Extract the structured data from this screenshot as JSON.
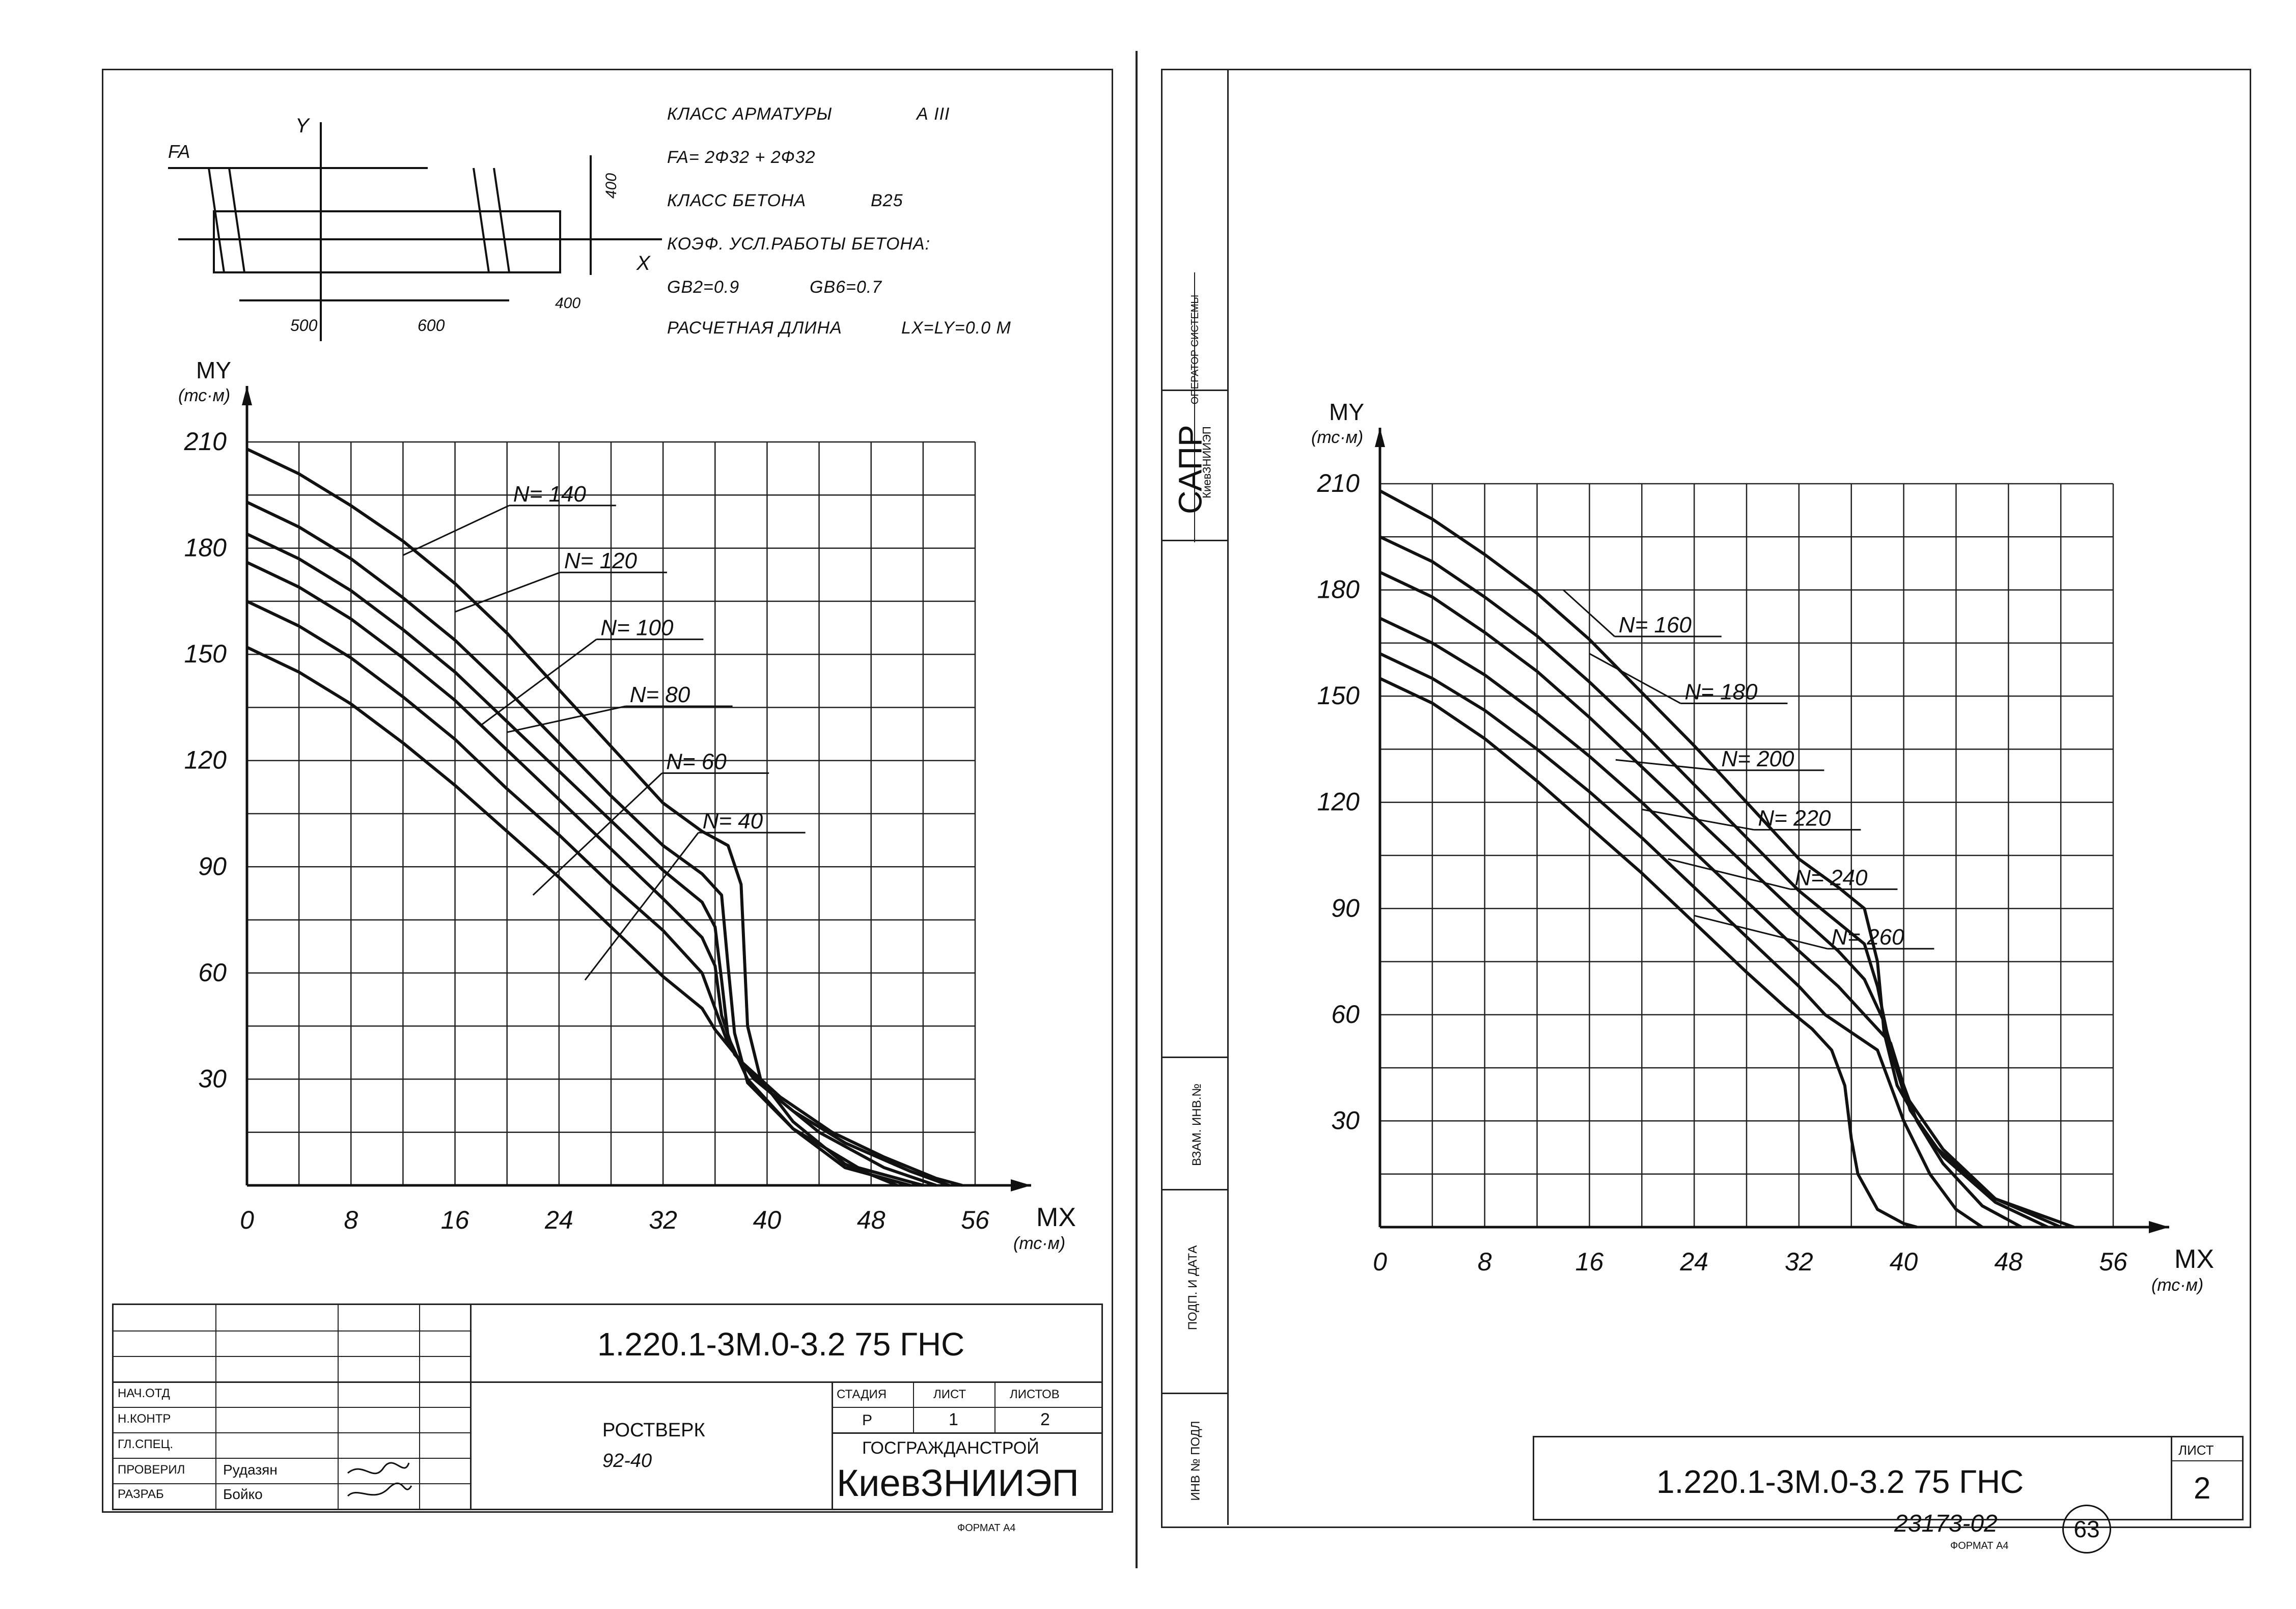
{
  "left_sheet": {
    "info": {
      "rebar_class_label": "КЛАСС АРМАТУРЫ",
      "rebar_class_value": "А III",
      "fa_line": "FA= 2Ф32 + 2Ф32",
      "concrete_class_label": "КЛАСС БЕТОНА",
      "concrete_class_value": "B25",
      "coef_title": "КОЭФ. УСЛ.РАБОТЫ БЕТОНА:",
      "gb2": "GB2=0.9",
      "gb6": "GB6=0.7",
      "length_label": "РАСЧЕТНАЯ ДЛИНА",
      "length_value": "LX=LY=0.0 М"
    },
    "section": {
      "fa": "FA",
      "y": "Y",
      "x": "X",
      "dim_400_top": "400",
      "dim_400_bottom": "400",
      "dim_500": "500",
      "dim_600": "600"
    },
    "title_block": {
      "doc_code": "1.220.1-3М.0-3.2 75 ГНС",
      "roles": [
        "НАЧ.ОТД",
        "Н.КОНТР",
        "ГЛ.СПЕЦ.",
        "ПРОВЕРИЛ",
        "РАЗРАБ"
      ],
      "names": [
        "",
        "",
        "",
        "Рудазян",
        "Бойко"
      ],
      "item_name": "РОСТВЕРК",
      "item_mark": "92-40",
      "stage_label": "СТАДИЯ",
      "sheet_label": "ЛИСТ",
      "sheets_label": "ЛИСТОВ",
      "stage_value": "Р",
      "sheet_value": "1",
      "sheets_value": "2",
      "org_top": "ГОСГРАЖДАНСТРОЙ",
      "org_bottom": "КиевЗНИИЭП",
      "format": "ФОРМАТ А4"
    }
  },
  "right_sheet": {
    "side_strip": {
      "operator": "ОПЕРАТОР СИСТЕМЫ",
      "sapr": "САПР",
      "sapr_sub": "КиевЗНИИЭП",
      "vzam": "ВЗАМ. ИНВ.№",
      "podp": "ПОДП. И ДАТА",
      "inv": "ИНВ № ПОДЛ"
    },
    "title_block": {
      "doc_code": "1.220.1-3М.0-3.2 75 ГНС",
      "sheet_label": "ЛИСТ",
      "sheet_value": "2",
      "stamp": "23173-02",
      "circled": "63",
      "format": "ФОРМАТ А4"
    }
  },
  "chart_data": [
    {
      "type": "line",
      "title": "",
      "xlabel": "MX",
      "xunit": "(тс·м)",
      "ylabel": "MY",
      "yunit": "(тс·м)",
      "xlim": [
        0,
        56
      ],
      "ylim": [
        0,
        210
      ],
      "xticks": [
        "0",
        "8",
        "16",
        "24",
        "32",
        "40",
        "48",
        "56"
      ],
      "yticks": [
        "30",
        "60",
        "90",
        "120",
        "150",
        "180",
        "210"
      ],
      "grid": true,
      "series": [
        {
          "name": "N= 140",
          "x": [
            0,
            4,
            8,
            12,
            16,
            20,
            24,
            28,
            32,
            35,
            37,
            38,
            38.5,
            39.5,
            42,
            46,
            50
          ],
          "y": [
            208,
            201,
            192,
            182,
            170,
            156,
            140,
            124,
            108,
            100,
            96,
            85,
            45,
            30,
            18,
            6,
            0
          ]
        },
        {
          "name": "N= 120",
          "x": [
            0,
            4,
            8,
            12,
            16,
            20,
            24,
            28,
            32,
            35,
            36.5,
            37,
            37.5,
            38.5,
            42,
            46,
            51
          ],
          "y": [
            193,
            186,
            177,
            166,
            154,
            140,
            125,
            110,
            96,
            88,
            82,
            62,
            43,
            29,
            16,
            5,
            0
          ]
        },
        {
          "name": "N= 100",
          "x": [
            0,
            4,
            8,
            12,
            16,
            20,
            24,
            28,
            32,
            35,
            36,
            36.5,
            37,
            38.5,
            42,
            47,
            52
          ],
          "y": [
            184,
            177,
            168,
            157,
            145,
            131,
            117,
            103,
            89,
            80,
            73,
            58,
            42,
            30,
            16,
            5,
            0
          ]
        },
        {
          "name": "N= 80",
          "x": [
            0,
            4,
            8,
            12,
            16,
            20,
            24,
            28,
            32,
            35,
            36,
            36.5,
            37.5,
            40,
            44,
            49,
            53
          ],
          "y": [
            176,
            169,
            160,
            149,
            137,
            123,
            109,
            95,
            81,
            70,
            62,
            48,
            37,
            27,
            15,
            5,
            0
          ]
        },
        {
          "name": "N= 60",
          "x": [
            0,
            4,
            8,
            12,
            16,
            20,
            24,
            28,
            32,
            35,
            36,
            37,
            39,
            42,
            46,
            51,
            54
          ],
          "y": [
            165,
            158,
            149,
            138,
            126,
            112,
            99,
            85,
            72,
            60,
            50,
            40,
            30,
            21,
            12,
            4,
            0
          ]
        },
        {
          "name": "N= 40",
          "x": [
            0,
            4,
            8,
            12,
            16,
            20,
            24,
            28,
            32,
            35,
            36,
            38,
            41,
            45,
            49,
            53,
            55
          ],
          "y": [
            152,
            145,
            136,
            125,
            113,
            100,
            87,
            73,
            59,
            50,
            44,
            35,
            25,
            15,
            8,
            2,
            0
          ]
        }
      ]
    },
    {
      "type": "line",
      "title": "",
      "xlabel": "MX",
      "xunit": "(тс·м)",
      "ylabel": "MY",
      "yunit": "(тс·м)",
      "xlim": [
        0,
        56
      ],
      "ylim": [
        0,
        210
      ],
      "xticks": [
        "0",
        "8",
        "16",
        "24",
        "32",
        "40",
        "48",
        "56"
      ],
      "yticks": [
        "30",
        "60",
        "90",
        "120",
        "150",
        "180",
        "210"
      ],
      "grid": true,
      "series": [
        {
          "name": "N= 160",
          "x": [
            0,
            4,
            8,
            12,
            16,
            20,
            24,
            28,
            32,
            35,
            37,
            38,
            38.5,
            39.5,
            42,
            47,
            53
          ],
          "y": [
            208,
            200,
            190,
            179,
            166,
            151,
            136,
            120,
            104,
            96,
            90,
            75,
            55,
            40,
            24,
            8,
            0
          ]
        },
        {
          "name": "N= 180",
          "x": [
            0,
            4,
            8,
            12,
            16,
            20,
            24,
            28,
            32,
            35,
            37,
            38,
            39,
            40,
            43,
            47,
            52
          ],
          "y": [
            195,
            188,
            178,
            167,
            154,
            140,
            125,
            110,
            95,
            86,
            80,
            68,
            50,
            38,
            22,
            8,
            0
          ]
        },
        {
          "name": "N= 200",
          "x": [
            0,
            4,
            8,
            12,
            16,
            20,
            24,
            28,
            32,
            35,
            37,
            38.5,
            39.5,
            40.5,
            43,
            47,
            51
          ],
          "y": [
            185,
            178,
            168,
            157,
            144,
            130,
            116,
            102,
            88,
            78,
            70,
            58,
            45,
            33,
            20,
            7,
            0
          ]
        },
        {
          "name": "N= 220",
          "x": [
            0,
            4,
            8,
            12,
            16,
            20,
            24,
            28,
            32,
            35,
            37,
            39,
            40,
            41,
            43,
            46,
            49
          ],
          "y": [
            172,
            165,
            156,
            145,
            133,
            120,
            106,
            92,
            78,
            68,
            60,
            52,
            40,
            30,
            18,
            6,
            0
          ]
        },
        {
          "name": "N= 240",
          "x": [
            0,
            4,
            8,
            12,
            16,
            20,
            24,
            28,
            32,
            34,
            36,
            38,
            39,
            40,
            42,
            44,
            46
          ],
          "y": [
            162,
            155,
            146,
            135,
            123,
            110,
            96,
            82,
            68,
            60,
            55,
            50,
            40,
            30,
            15,
            5,
            0
          ]
        },
        {
          "name": "N= 260",
          "x": [
            0,
            4,
            8,
            12,
            16,
            20,
            24,
            28,
            31,
            33,
            34.5,
            35.5,
            36,
            36.5,
            38,
            40,
            41
          ],
          "y": [
            155,
            148,
            138,
            126,
            113,
            100,
            86,
            72,
            62,
            56,
            50,
            40,
            25,
            15,
            5,
            1,
            0
          ]
        }
      ]
    }
  ]
}
